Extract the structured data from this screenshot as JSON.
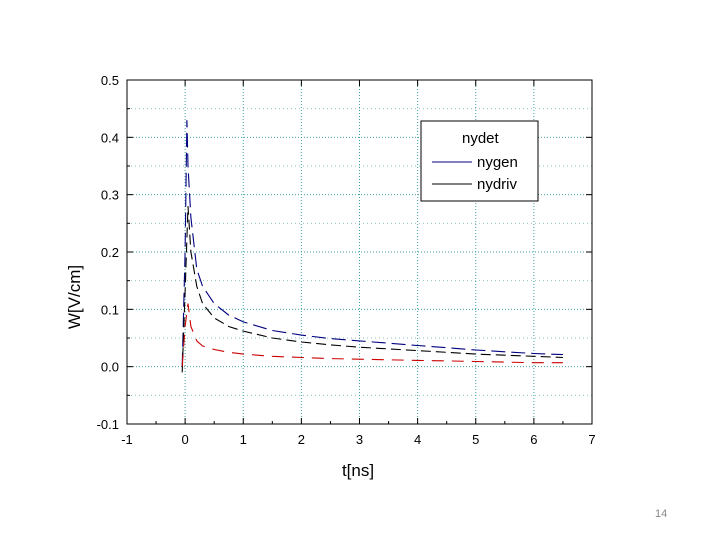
{
  "chart_data": {
    "type": "line",
    "title": "",
    "xlabel": "t[ns]",
    "ylabel": "W[V/cm]",
    "xlim": [
      -1,
      7
    ],
    "ylim": [
      -0.1,
      0.5
    ],
    "xticks": [
      -1,
      0,
      1,
      2,
      3,
      4,
      5,
      6,
      7
    ],
    "xtick_labels": [
      "-1",
      "0",
      "1",
      "2",
      "3",
      "4",
      "5",
      "6",
      "7"
    ],
    "yticks": [
      -0.1,
      0.0,
      0.1,
      0.2,
      0.3,
      0.4,
      0.5
    ],
    "ytick_labels": [
      "-0.1",
      "0.0",
      "0.1",
      "0.2",
      "0.3",
      "0.4",
      "0.5"
    ],
    "grid": true,
    "legend_position": "top-right",
    "legend_title": "nydet",
    "series": [
      {
        "name": "nygen",
        "color": "#000080",
        "x": [
          -0.05,
          0.0,
          0.03,
          0.05,
          0.1,
          0.2,
          0.3,
          0.5,
          0.75,
          1.0,
          1.5,
          2.0,
          2.5,
          3.0,
          3.5,
          4.0,
          4.5,
          5.0,
          5.5,
          6.0,
          6.5
        ],
        "y": [
          0.0,
          0.2,
          0.43,
          0.35,
          0.26,
          0.17,
          0.14,
          0.11,
          0.09,
          0.078,
          0.063,
          0.055,
          0.049,
          0.045,
          0.041,
          0.037,
          0.033,
          0.029,
          0.026,
          0.023,
          0.021
        ]
      },
      {
        "name": "nydriv",
        "color": "#000000",
        "x": [
          -0.05,
          0.0,
          0.05,
          0.1,
          0.2,
          0.3,
          0.5,
          0.75,
          1.0,
          1.5,
          2.0,
          2.5,
          3.0,
          3.5,
          4.0,
          4.5,
          5.0,
          5.5,
          6.0,
          6.5
        ],
        "y": [
          -0.01,
          0.13,
          0.28,
          0.2,
          0.14,
          0.11,
          0.085,
          0.07,
          0.062,
          0.05,
          0.043,
          0.038,
          0.034,
          0.031,
          0.028,
          0.025,
          0.022,
          0.02,
          0.018,
          0.016
        ]
      },
      {
        "name": "nydet",
        "color": "#cc0000",
        "x": [
          -0.05,
          0.0,
          0.05,
          0.1,
          0.2,
          0.3,
          0.5,
          0.75,
          1.0,
          1.5,
          2.0,
          2.5,
          3.0,
          3.5,
          4.0,
          4.5,
          5.0,
          5.5,
          6.0,
          6.5
        ],
        "y": [
          0.0,
          0.07,
          0.11,
          0.07,
          0.045,
          0.036,
          0.03,
          0.025,
          0.022,
          0.018,
          0.016,
          0.014,
          0.013,
          0.012,
          0.011,
          0.01,
          0.009,
          0.008,
          0.007,
          0.007
        ]
      }
    ]
  },
  "slide_number": "14"
}
